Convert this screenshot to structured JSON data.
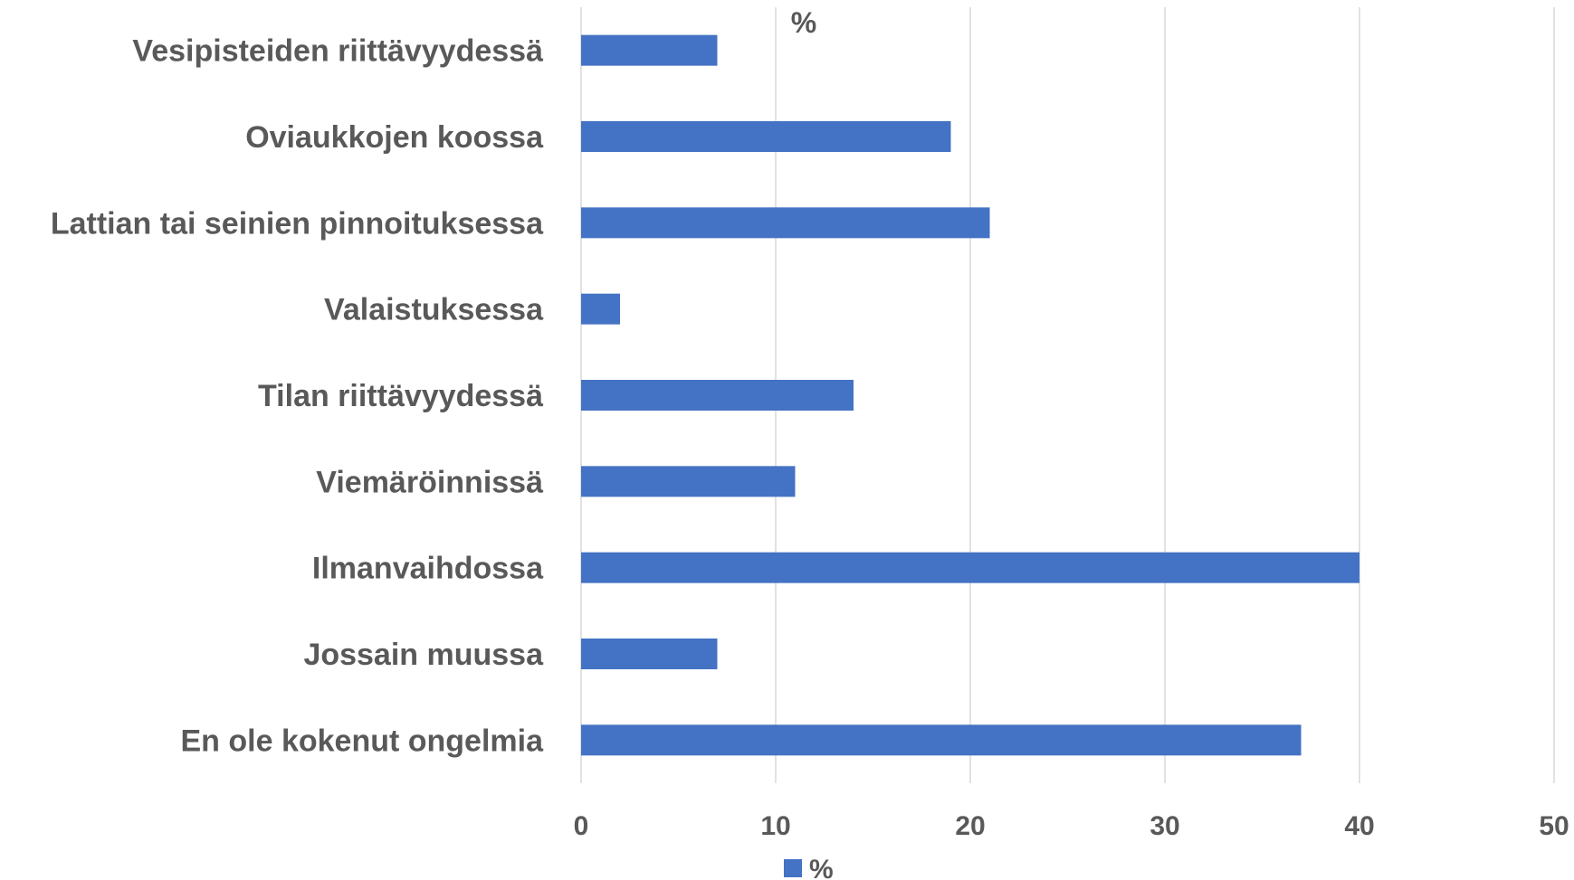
{
  "chart_data": {
    "type": "bar",
    "orientation": "horizontal",
    "title": "%",
    "categories": [
      "Vesipisteiden riittävyydessä",
      "Oviaukkojen koossa",
      "Lattian tai seinien pinnoituksessa",
      "Valaistuksessa",
      "Tilan riittävyydessä",
      "Viemäröinnissä",
      "Ilmanvaihdossa",
      "Jossain muussa",
      "En ole kokenut ongelmia"
    ],
    "series": [
      {
        "name": "%",
        "values": [
          7,
          19,
          21,
          2,
          14,
          11,
          40,
          7,
          37
        ],
        "color": "#4472C4"
      }
    ],
    "xlim": [
      0,
      50
    ],
    "xticks": [
      "0",
      "10",
      "20",
      "30",
      "40",
      "50"
    ],
    "xlabel": "",
    "ylabel": "",
    "grid": "vertical",
    "legend": "bottom-center",
    "colors": {
      "bar": "#4472C4",
      "grid": "#D9D9D9",
      "text": "#595959"
    }
  }
}
